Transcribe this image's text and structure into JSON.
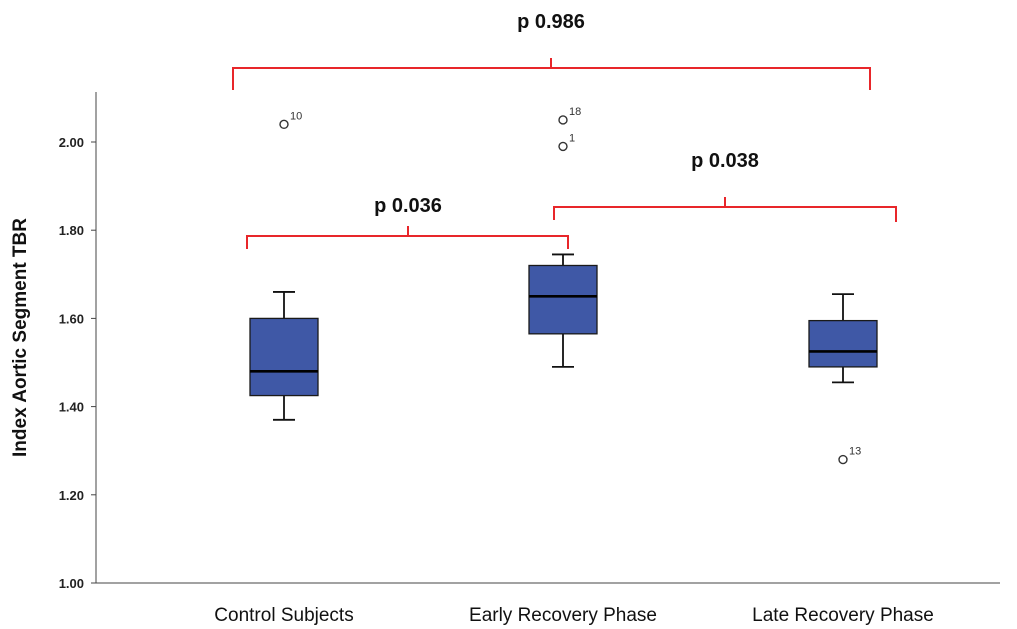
{
  "chart_data": {
    "type": "box",
    "ylabel": "Index Aortic Segment TBR",
    "xlabel": "",
    "ylim": [
      1.0,
      2.12
    ],
    "yticks": [
      1.0,
      1.2,
      1.4,
      1.6,
      1.8,
      2.0
    ],
    "ytick_labels": [
      "1.00",
      "1.20",
      "1.40",
      "1.60",
      "1.80",
      "2.00"
    ],
    "grid": false,
    "box_color": "#3f58a6",
    "bracket_color": "#e8262a",
    "categories": [
      "Control Subjects",
      "Early Recovery Phase",
      "Late Recovery Phase"
    ],
    "boxes": [
      {
        "whisker_low": 1.37,
        "q1": 1.425,
        "median": 1.48,
        "q3": 1.6,
        "whisker_high": 1.66,
        "outliers": [
          {
            "value": 2.04,
            "label": "10"
          }
        ]
      },
      {
        "whisker_low": 1.49,
        "q1": 1.565,
        "median": 1.65,
        "q3": 1.72,
        "whisker_high": 1.745,
        "outliers": [
          {
            "value": 2.05,
            "label": "18"
          },
          {
            "value": 1.99,
            "label": "1"
          }
        ]
      },
      {
        "whisker_low": 1.455,
        "q1": 1.49,
        "median": 1.525,
        "q3": 1.595,
        "whisker_high": 1.655,
        "outliers": [
          {
            "value": 1.28,
            "label": "13"
          }
        ]
      }
    ],
    "comparisons": [
      {
        "from": 0,
        "to": 2,
        "label": "p 0.986"
      },
      {
        "from": 0,
        "to": 1,
        "label": "p 0.036"
      },
      {
        "from": 1,
        "to": 2,
        "label": "p 0.038"
      }
    ]
  }
}
